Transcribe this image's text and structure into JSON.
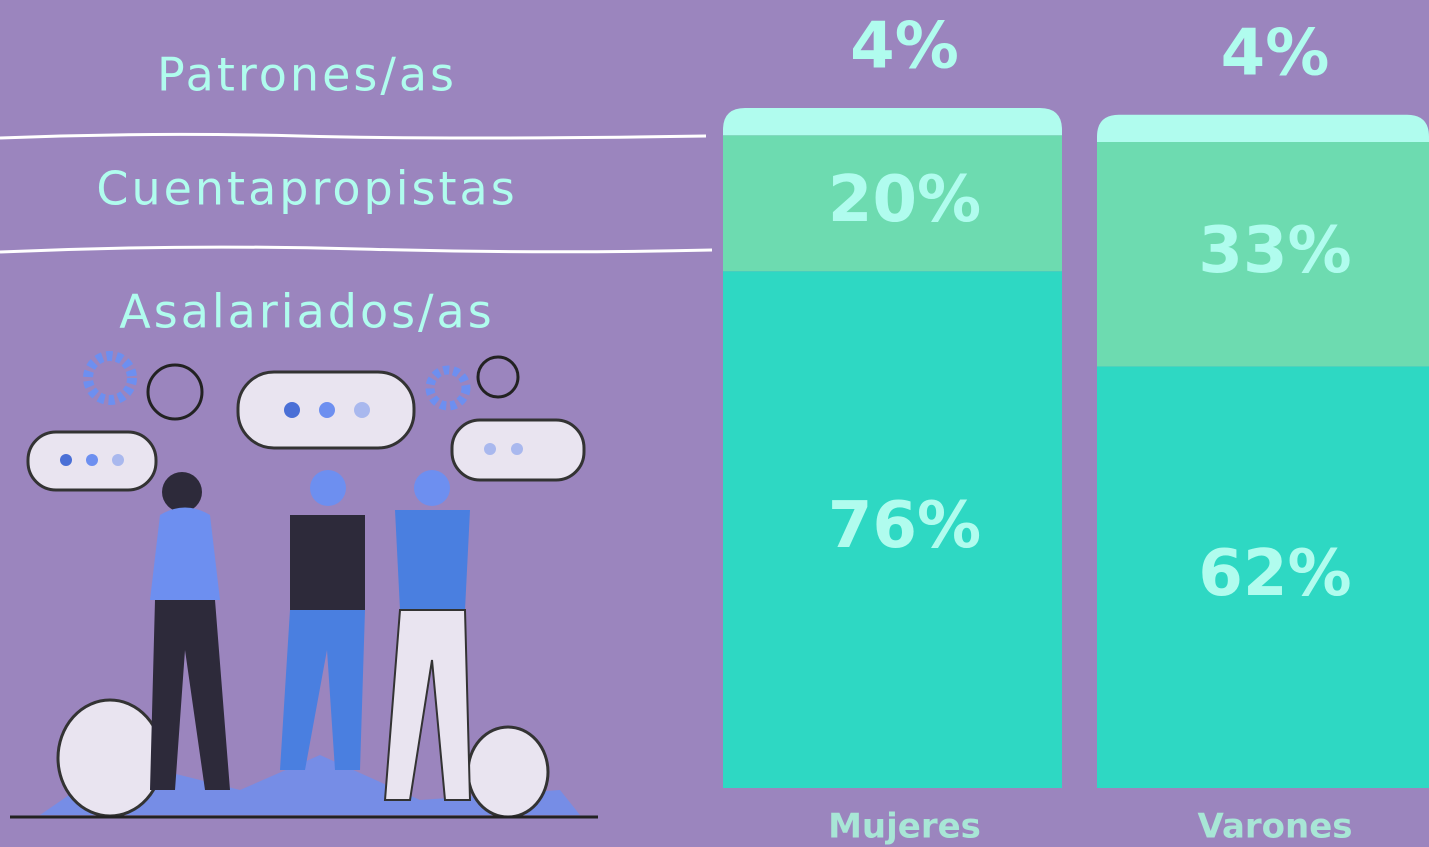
{
  "chart_data": {
    "type": "bar",
    "stacked": true,
    "categories": [
      "Mujeres",
      "Varones"
    ],
    "series": [
      {
        "name": "Asalariados/as",
        "color": "#2ed8c3",
        "values": [
          76,
          62
        ],
        "value_labels": [
          "76%",
          "62%"
        ]
      },
      {
        "name": "Cuentapropistas",
        "color": "#6ddbb0",
        "values": [
          20,
          33
        ],
        "value_labels": [
          "20%",
          "33%"
        ]
      },
      {
        "name": "Patrones/as",
        "color": "#b0fcee",
        "values": [
          4,
          4
        ],
        "value_labels": [
          "4%",
          "4%"
        ]
      }
    ],
    "ylim": [
      0,
      100
    ]
  }
}
